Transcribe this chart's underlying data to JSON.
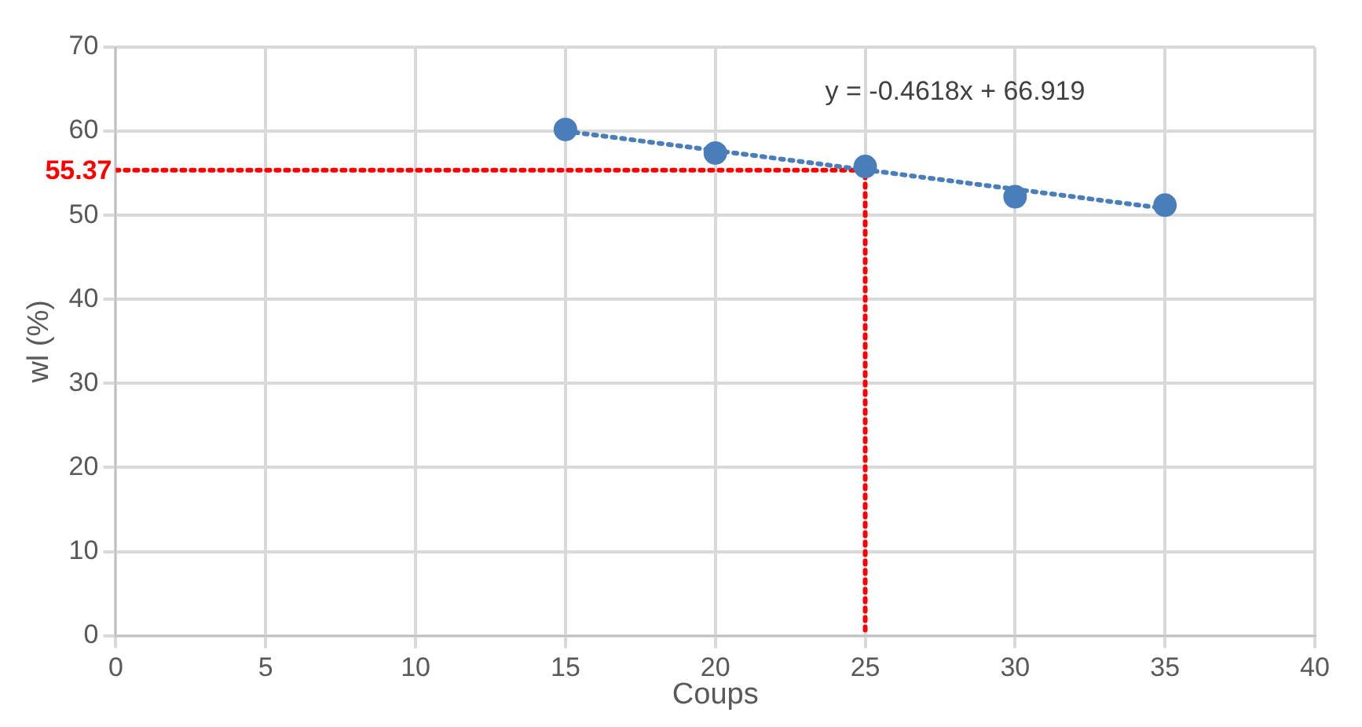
{
  "chart_data": {
    "type": "scatter",
    "xlabel": "Coups",
    "ylabel": "wl (%)",
    "xlim": [
      0,
      40
    ],
    "xticks": [
      0,
      5,
      10,
      15,
      20,
      25,
      30,
      35,
      40
    ],
    "ylim": [
      0,
      70
    ],
    "yticks": [
      0,
      10,
      20,
      30,
      40,
      50,
      60,
      70
    ],
    "grid": true,
    "legend": false,
    "series": [
      {
        "color": "#4a7ebb",
        "marker": "circle",
        "x": [
          15,
          20,
          25,
          30,
          35
        ],
        "values": [
          60.2,
          57.4,
          55.8,
          52.2,
          51.2
        ]
      },
      {
        "type": "line",
        "color": "#4a7ebb",
        "marker": "none",
        "line_style": "dotted",
        "x": [
          15,
          35
        ],
        "values": [
          60.0,
          50.8
        ]
      },
      {
        "type": "line",
        "color": "#ff0000",
        "marker": "none",
        "line_style": "dotted",
        "x": [
          0,
          25,
          25
        ],
        "values": [
          55.37,
          55.37,
          0
        ]
      }
    ],
    "annotations": [
      "y = -0.4618x + 66.919",
      {
        "text": "55.37",
        "x": 0,
        "y": 55.37
      }
    ]
  }
}
